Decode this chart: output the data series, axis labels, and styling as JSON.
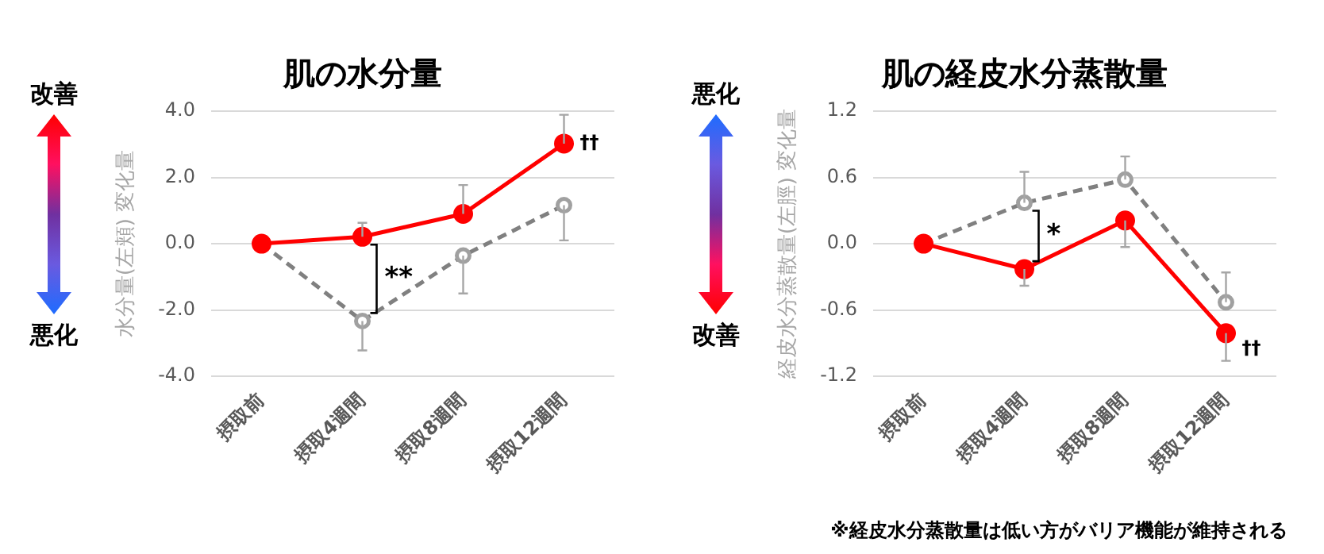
{
  "chart_data": [
    {
      "type": "line",
      "title": "肌の水分量",
      "ylabel": "水分量(左頬) 変化量",
      "categories": [
        "摂取前",
        "摂取4週間",
        "摂取8週間",
        "摂取12週間"
      ],
      "series": [
        {
          "color": "#ff0000",
          "line_style": "solid",
          "values": [
            0,
            0.21,
            0.9,
            3.02
          ],
          "errors": [
            null,
            [
              0.21,
              0.63
            ],
            [
              0.9,
              1.77
            ],
            [
              3.02,
              3.89
            ]
          ]
        },
        {
          "color": "#808080",
          "line_style": "dashed",
          "values": [
            0,
            -2.33,
            -0.36,
            1.16
          ],
          "errors": [
            null,
            [
              -3.22,
              -2.33
            ],
            [
              -1.5,
              -0.36
            ],
            [
              0.1,
              1.16
            ]
          ]
        }
      ],
      "ylim": [
        -4,
        4
      ],
      "yticks": [
        {
          "value": -4,
          "label": "-4.0"
        },
        {
          "value": -2,
          "label": "-2.0"
        },
        {
          "value": 0,
          "label": "0.0"
        },
        {
          "value": 2,
          "label": "2.0"
        },
        {
          "value": 4,
          "label": "4.0"
        }
      ],
      "grid": "y",
      "marker": "circle",
      "annotations": [
        "改善",
        "悪化",
        "**",
        {
          "text": "††",
          "x": "摂取12週間",
          "y": 3.02
        }
      ]
    },
    {
      "type": "line",
      "title": "肌の経皮水分蒸散量",
      "ylabel": "経皮水分蒸散量(左脛) 変化量",
      "categories": [
        "摂取前",
        "摂取4週間",
        "摂取8週間",
        "摂取12週間"
      ],
      "series": [
        {
          "color": "#ff0000",
          "line_style": "solid",
          "values": [
            0,
            -0.23,
            0.21,
            -0.81
          ],
          "errors": [
            null,
            [
              -0.38,
              -0.23
            ],
            [
              -0.03,
              0.21
            ],
            [
              -1.06,
              -0.81
            ]
          ]
        },
        {
          "color": "#808080",
          "line_style": "dashed",
          "values": [
            0,
            0.37,
            0.58,
            -0.53
          ],
          "errors": [
            null,
            [
              0.37,
              0.65
            ],
            [
              0.58,
              0.79
            ],
            [
              -0.53,
              -0.26
            ]
          ]
        }
      ],
      "ylim": [
        -1.2,
        1.2
      ],
      "yticks": [
        {
          "value": -1.2,
          "label": "-1.2"
        },
        {
          "value": -0.6,
          "label": "-0.6"
        },
        {
          "value": 0,
          "label": "0.0"
        },
        {
          "value": 0.6,
          "label": "0.6"
        },
        {
          "value": 1.2,
          "label": "1.2"
        }
      ],
      "grid": "y",
      "marker": "circle",
      "annotations": [
        "悪化",
        "改善",
        "*",
        {
          "text": "††",
          "x": "摂取12週間",
          "y": -0.95
        },
        "※経皮水分蒸散量は低い方がバリア機能が維持される"
      ]
    }
  ]
}
